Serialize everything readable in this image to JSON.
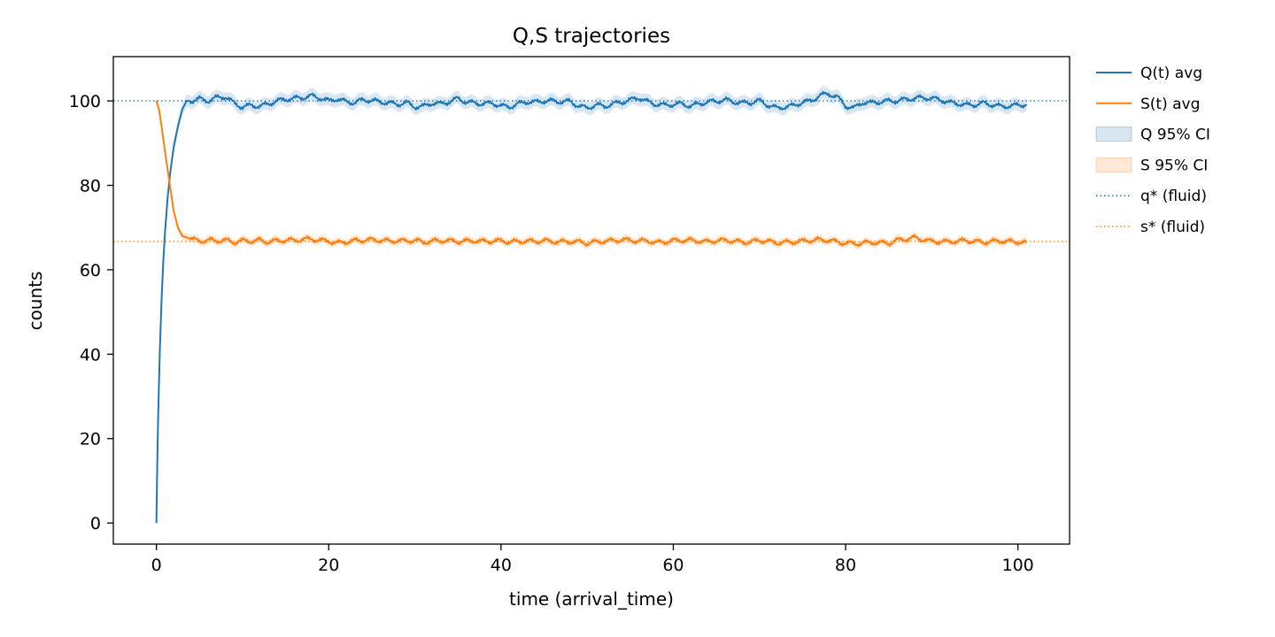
{
  "chart_data": {
    "type": "line",
    "title": "Q,S trajectories",
    "xlabel": "time (arrival_time)",
    "ylabel": "counts",
    "xlim": [
      -5,
      106
    ],
    "ylim": [
      -5,
      110.5
    ],
    "x_ticks": [
      0,
      20,
      40,
      60,
      80,
      100
    ],
    "y_ticks": [
      0,
      20,
      40,
      60,
      80,
      100
    ],
    "x_tick_labels": [
      "0",
      "20",
      "40",
      "60",
      "80",
      "100"
    ],
    "y_tick_labels": [
      "0",
      "20",
      "40",
      "60",
      "80",
      "100"
    ],
    "grid": false,
    "legend_position": "outside-right-top",
    "colors": {
      "q": "#1f77b4",
      "s": "#ff7f0e"
    },
    "legend": [
      {
        "label": "Q(t) avg",
        "kind": "line",
        "color": "#1f77b4"
      },
      {
        "label": "S(t) avg",
        "kind": "line",
        "color": "#ff7f0e"
      },
      {
        "label": "Q 95% CI",
        "kind": "band",
        "color": "#1f77b4"
      },
      {
        "label": "S 95% CI",
        "kind": "band",
        "color": "#ff7f0e"
      },
      {
        "label": "q* (fluid)",
        "kind": "dotted",
        "color": "#1f77b4"
      },
      {
        "label": "s* (fluid)",
        "kind": "dotted",
        "color": "#ff7f0e"
      }
    ],
    "reference_lines": [
      {
        "label": "q* (fluid)",
        "y": 100,
        "color": "#1f77b4"
      },
      {
        "label": "s* (fluid)",
        "y": 66.7,
        "color": "#ff7f0e"
      }
    ],
    "series": [
      {
        "name": "Q(t) avg",
        "color": "#1f77b4",
        "ci_halfwidth": 1.5,
        "x": [
          0,
          0.1,
          0.2,
          0.4,
          0.6,
          0.8,
          1.0,
          1.3,
          1.6,
          2.0,
          2.5,
          3.0,
          3.5,
          4,
          5,
          6,
          7,
          8,
          9,
          10,
          11,
          12,
          13,
          14,
          15,
          16,
          17,
          18,
          19,
          20,
          21,
          22,
          23,
          24,
          25,
          26,
          27,
          28,
          29,
          30,
          31,
          32,
          33,
          34,
          35,
          36,
          37,
          38,
          39,
          40,
          41,
          42,
          43,
          44,
          45,
          46,
          47,
          48,
          49,
          50,
          51,
          52,
          53,
          54,
          55,
          56,
          57,
          58,
          59,
          60,
          61,
          62,
          63,
          64,
          65,
          66,
          67,
          68,
          69,
          70,
          71,
          72,
          73,
          74,
          75,
          76,
          77,
          78,
          79,
          80,
          81,
          82,
          83,
          84,
          85,
          86,
          87,
          88,
          89,
          90,
          91,
          92,
          93,
          94,
          95,
          96,
          97,
          98,
          99,
          100,
          101
        ],
        "y": [
          0,
          14,
          25,
          41,
          53,
          62,
          69,
          77,
          83,
          89,
          94,
          98,
          100,
          100,
          100.5,
          100,
          100.8,
          101,
          99.5,
          98.5,
          99,
          98.7,
          99.3,
          100,
          100.4,
          100.6,
          100.8,
          101.2,
          100.7,
          100,
          100.5,
          99.8,
          99.6,
          100.3,
          100.1,
          99.8,
          99.5,
          99.2,
          99.6,
          98.6,
          98.7,
          99.5,
          99.3,
          99.8,
          100.6,
          99.7,
          99.5,
          99.3,
          99.5,
          98.8,
          98.6,
          99.3,
          99.8,
          99.7,
          100,
          100,
          99.8,
          99.9,
          98.8,
          98.3,
          99.1,
          98.7,
          99.3,
          99.7,
          100.2,
          100.8,
          99.8,
          99.2,
          99,
          99.2,
          99.3,
          98.8,
          99.3,
          99.8,
          99.9,
          100.3,
          99.8,
          99.5,
          99.6,
          100.1,
          99,
          98.3,
          98.6,
          98.9,
          99.7,
          100,
          101.3,
          101.7,
          101,
          98.8,
          98.3,
          99.7,
          99.5,
          99.8,
          100,
          100,
          100.4,
          100.6,
          100.8,
          100.6,
          100.3,
          99.6,
          99.4,
          99,
          99.1,
          99.5,
          99.1,
          98.7,
          98.8,
          99,
          99.2
        ]
      },
      {
        "name": "S(t) avg",
        "color": "#ff7f0e",
        "ci_halfwidth": 0.9,
        "x": [
          0,
          0.3,
          0.6,
          1.0,
          1.5,
          2.0,
          2.5,
          3.0,
          4,
          5,
          6,
          7,
          8,
          9,
          10,
          11,
          12,
          13,
          14,
          15,
          16,
          17,
          18,
          19,
          20,
          21,
          22,
          23,
          24,
          25,
          26,
          27,
          28,
          29,
          30,
          31,
          32,
          33,
          34,
          35,
          36,
          37,
          38,
          39,
          40,
          41,
          42,
          43,
          44,
          45,
          46,
          47,
          48,
          49,
          50,
          51,
          52,
          53,
          54,
          55,
          56,
          57,
          58,
          59,
          60,
          61,
          62,
          63,
          64,
          65,
          66,
          67,
          68,
          69,
          70,
          71,
          72,
          73,
          74,
          75,
          76,
          77,
          78,
          79,
          80,
          81,
          82,
          83,
          84,
          85,
          86,
          87,
          88,
          89,
          90,
          91,
          92,
          93,
          94,
          95,
          96,
          97,
          98,
          99,
          100,
          101
        ],
        "y": [
          100,
          98,
          94,
          88,
          81,
          74,
          70,
          68,
          67.3,
          66.8,
          67,
          66.9,
          67,
          66.5,
          66.9,
          66.8,
          67,
          66.6,
          66.9,
          67,
          67,
          67.2,
          67.3,
          67,
          66.8,
          66.3,
          66.6,
          66.9,
          67,
          67.1,
          67,
          66.8,
          66.9,
          66.8,
          67,
          66.5,
          66.8,
          66.9,
          66.9,
          66.7,
          66.8,
          66.9,
          66.7,
          66.8,
          66.9,
          66.6,
          66.7,
          66.8,
          66.7,
          66.9,
          66.7,
          66.6,
          66.7,
          66.6,
          66.3,
          66.6,
          66.8,
          66.9,
          67.1,
          67,
          66.8,
          66.9,
          66.4,
          66.6,
          66.9,
          67,
          67,
          66.8,
          66.6,
          66.9,
          67,
          66.8,
          66.5,
          66.6,
          67,
          66.7,
          66.4,
          66.5,
          66.6,
          66.8,
          67,
          67.1,
          67,
          66.6,
          66.3,
          66.2,
          66.3,
          66.5,
          66.4,
          66.3,
          67,
          67.3,
          67.6,
          67.2,
          66.7,
          66.7,
          66.6,
          66.8,
          66.9,
          66.7,
          66.5,
          66.7,
          66.8,
          66.7,
          66.6,
          66.4
        ]
      }
    ]
  }
}
